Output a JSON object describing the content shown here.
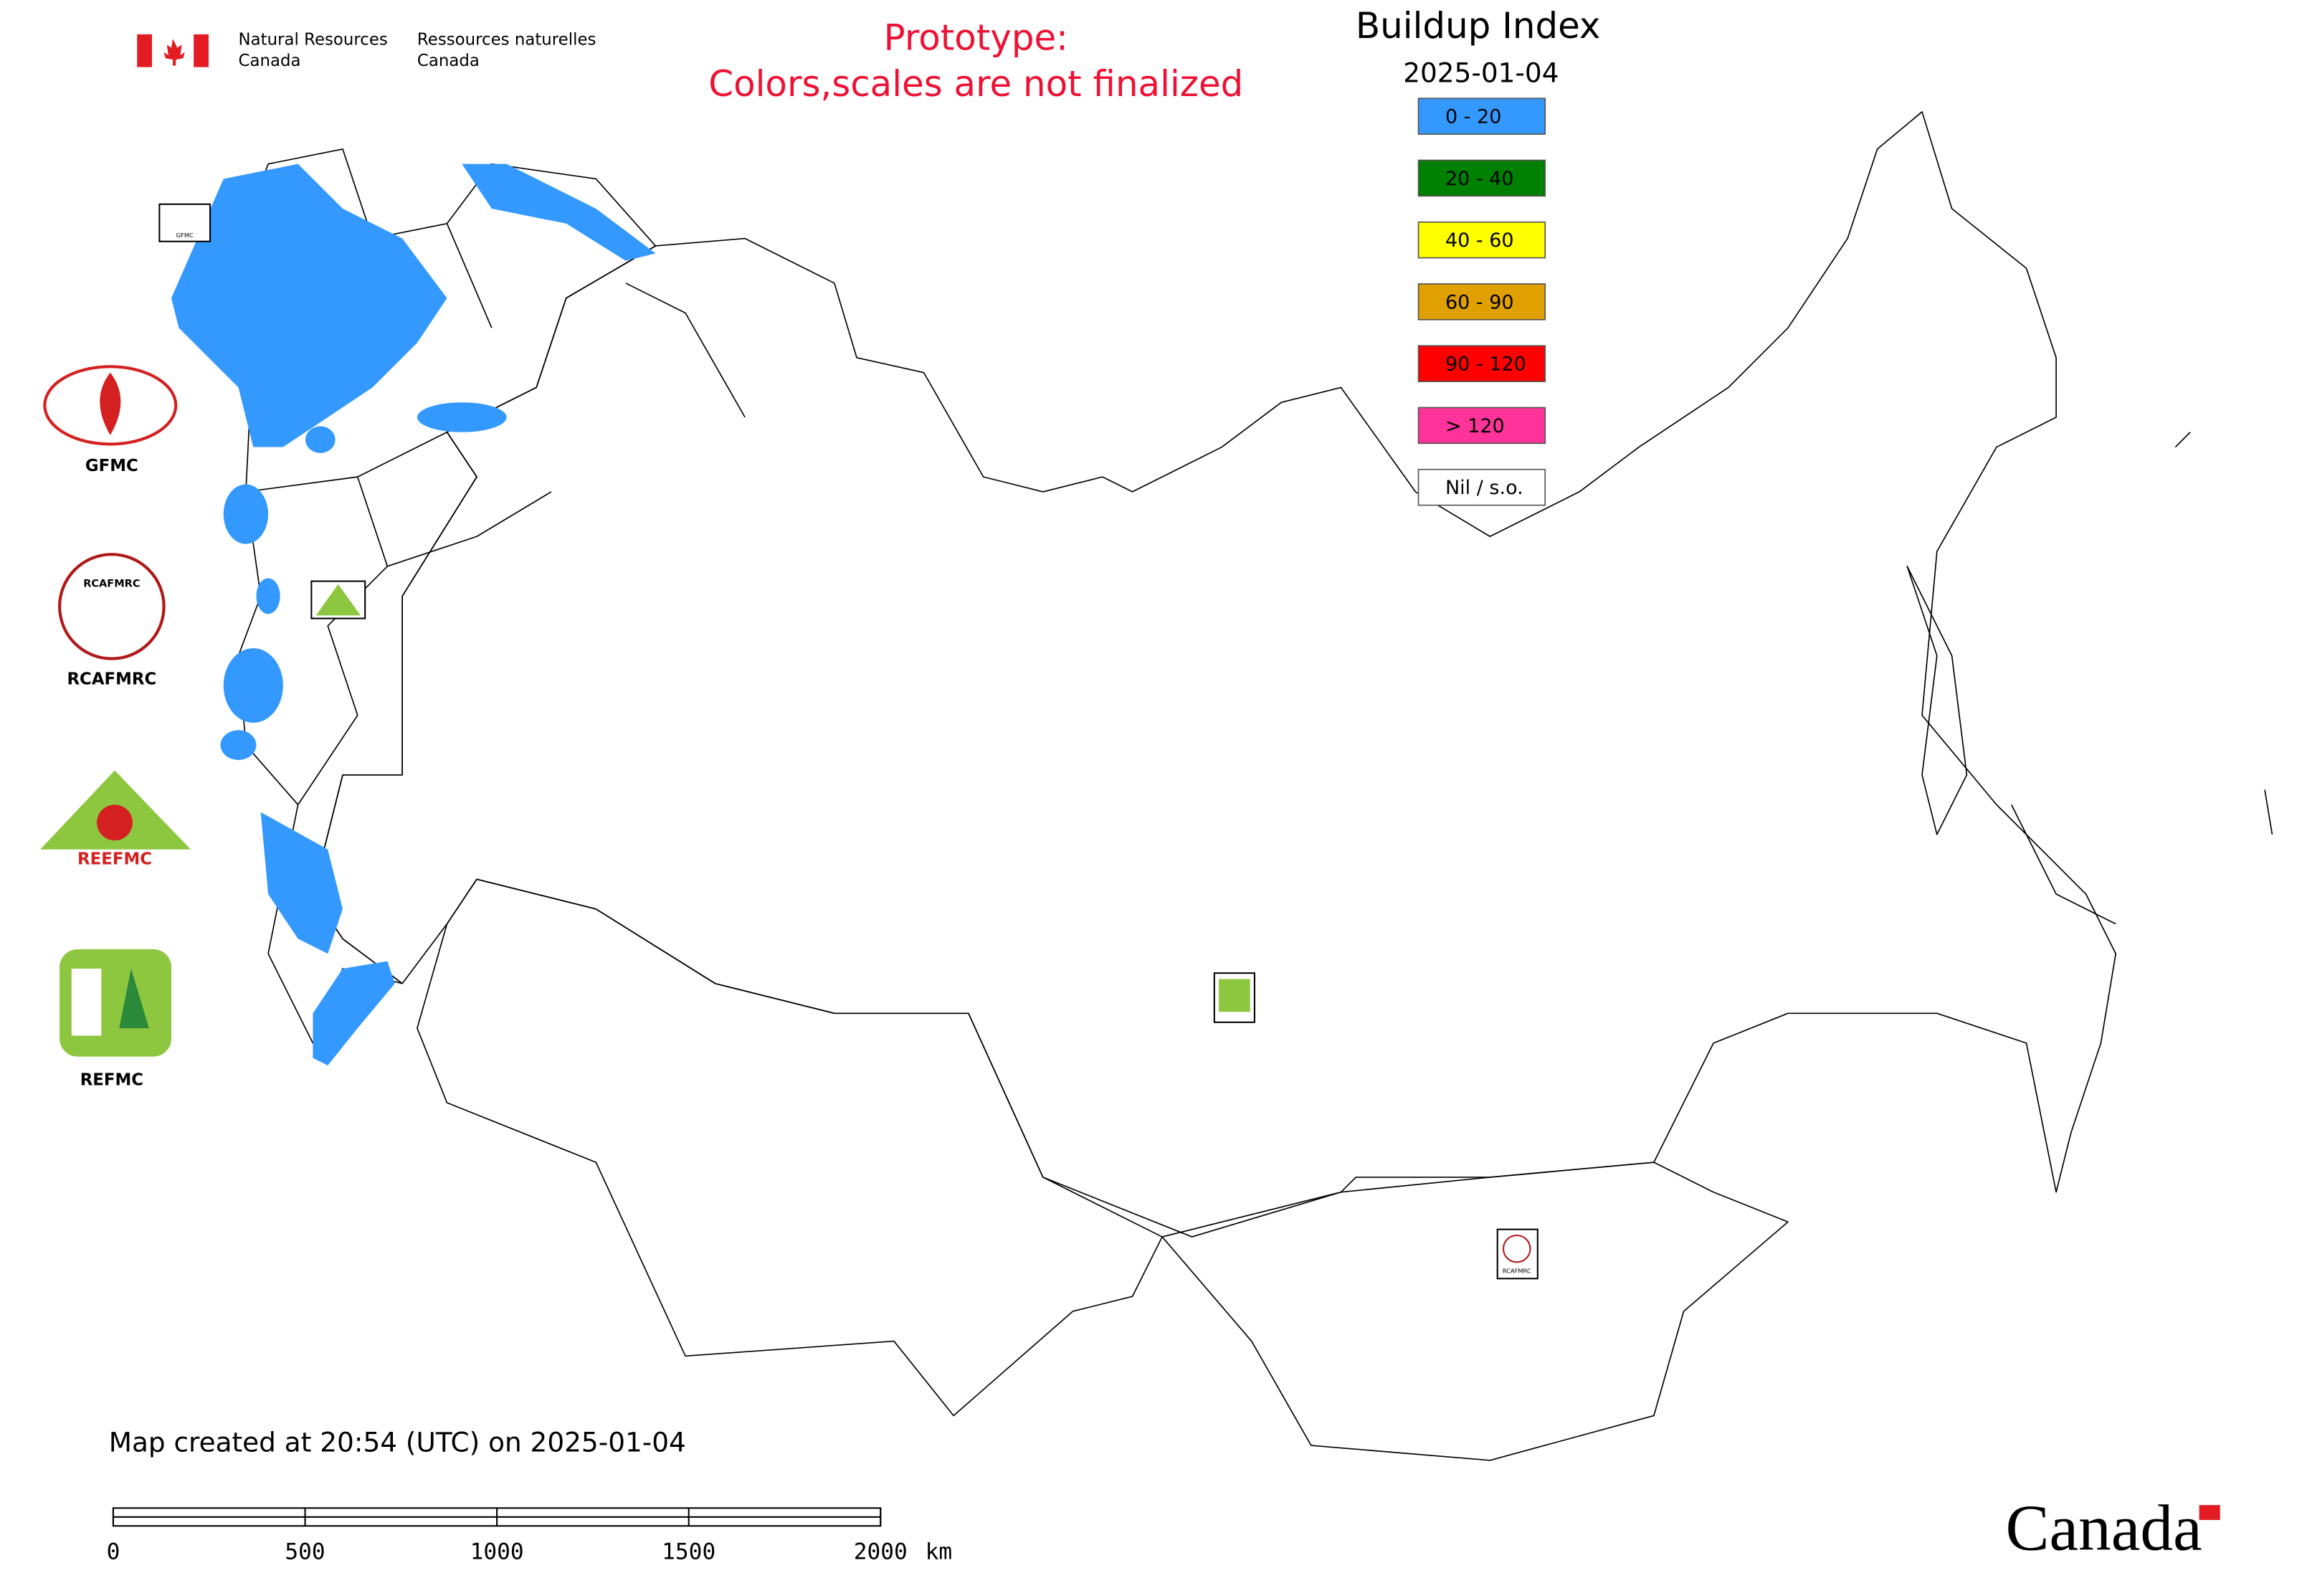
{
  "header": {
    "agency_en": [
      "Natural Resources",
      "Canada"
    ],
    "agency_fr": [
      "Ressources naturelles",
      "Canada"
    ],
    "notice": [
      "Prototype:",
      "Colors,scales are not finalized"
    ]
  },
  "legend": {
    "title": "Buildup Index",
    "date": "2025-01-04",
    "items": [
      {
        "label": "0 - 20",
        "color": "#3399ff"
      },
      {
        "label": "20 - 40",
        "color": "#008000"
      },
      {
        "label": "40 - 60",
        "color": "#ffff00"
      },
      {
        "label": "60 - 90",
        "color": "#e0a000"
      },
      {
        "label": "90 - 120",
        "color": "#ff0000"
      },
      {
        "label": "> 120",
        "color": "#ff3399"
      },
      {
        "label": "Nil / s.o.",
        "color": "#ffffff"
      }
    ]
  },
  "logos": [
    "GFMC",
    "RCAFMRC",
    "REEFMC",
    "REFMC"
  ],
  "footer": {
    "created": "Map created at 20:54 (UTC) on 2025-01-04",
    "scale_ticks": [
      0,
      500,
      1000,
      1500,
      2000
    ],
    "scale_unit": "km",
    "wordmark": "Canada"
  }
}
